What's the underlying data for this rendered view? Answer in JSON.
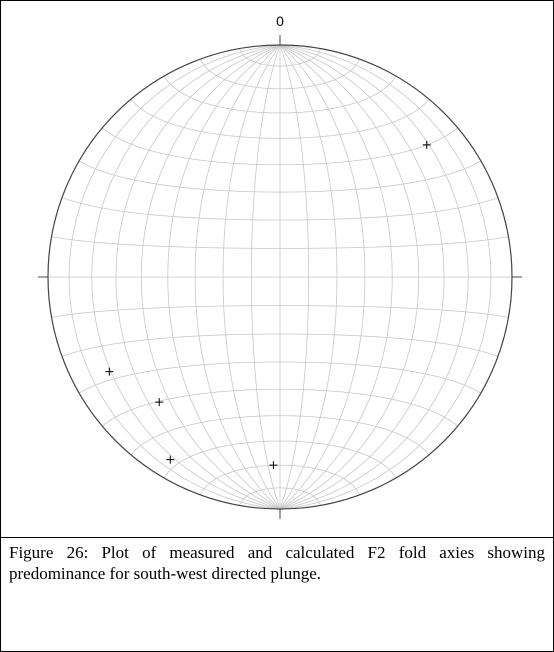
{
  "chart_data": {
    "type": "stereonet",
    "north_label": "0",
    "points": {
      "trend": [
        48,
        241,
        224,
        211,
        182
      ],
      "plunge": [
        16,
        17,
        26,
        9,
        20
      ]
    }
  },
  "caption": "Figure 26:  Plot of measured and calculated F2 fold axies showing predominance for south-west directed plunge."
}
